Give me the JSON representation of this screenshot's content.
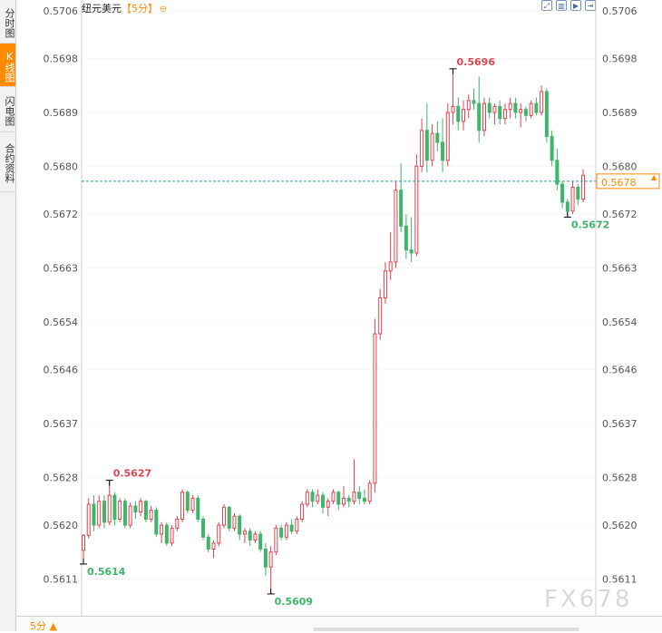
{
  "sidebar": {
    "tabs": [
      {
        "label": "分时图",
        "active": false
      },
      {
        "label": "K线图",
        "active": true
      },
      {
        "label": "闪电图",
        "active": false
      },
      {
        "label": "合约资料",
        "active": false
      }
    ]
  },
  "header": {
    "instrument": "纽元美元",
    "period": "【5分】",
    "zoom_icon": "⊖"
  },
  "toolbar": {
    "buttons": [
      {
        "name": "fit-icon",
        "glyph": "⤢"
      },
      {
        "name": "candle-icon",
        "glyph": "▥"
      },
      {
        "name": "play-icon",
        "glyph": "▶"
      },
      {
        "name": "exit-icon",
        "glyph": "⇥"
      }
    ]
  },
  "footer": {
    "period_label": "5分 ▲"
  },
  "watermark": "FX678",
  "colors": {
    "up": "#e0434f",
    "down": "#3fb46b",
    "grid": "#e4e4e4",
    "axis_text": "#555555",
    "last_price_line": "#2a9aa7",
    "current_price": "#ff8a00"
  },
  "chart_data": {
    "type": "candlestick",
    "title": "纽元美元【5分】",
    "ylim": [
      0.56047,
      0.57078
    ],
    "yticks": [
      "0.5706",
      "0.5698",
      "0.5689",
      "0.5680",
      "0.5672",
      "0.5663",
      "0.5654",
      "0.5646",
      "0.5637",
      "0.5628",
      "0.5620",
      "0.5611"
    ],
    "current_price": "0.5678",
    "current_price_value": 0.56775,
    "annotations": [
      {
        "label": "0.5696",
        "value": 0.56963,
        "kind": "high",
        "index": 71
      },
      {
        "label": "0.5627",
        "value": 0.56275,
        "kind": "high",
        "index": 5
      },
      {
        "label": "0.5614",
        "value": 0.56135,
        "kind": "low",
        "index": 0
      },
      {
        "label": "0.5609",
        "value": 0.56085,
        "kind": "low",
        "index": 36
      },
      {
        "label": "0.5672",
        "value": 0.56715,
        "kind": "low",
        "index": 93
      }
    ],
    "candles": [
      [
        0.56158,
        0.56185,
        0.56135,
        0.56183
      ],
      [
        0.56183,
        0.56245,
        0.56178,
        0.56235
      ],
      [
        0.56235,
        0.5625,
        0.5619,
        0.562
      ],
      [
        0.562,
        0.5625,
        0.56195,
        0.5624
      ],
      [
        0.5624,
        0.5625,
        0.56195,
        0.56205
      ],
      [
        0.56205,
        0.56275,
        0.562,
        0.5625
      ],
      [
        0.5625,
        0.56255,
        0.562,
        0.5621
      ],
      [
        0.5621,
        0.56245,
        0.56205,
        0.5624
      ],
      [
        0.5624,
        0.56245,
        0.56195,
        0.562
      ],
      [
        0.562,
        0.56238,
        0.56195,
        0.56232
      ],
      [
        0.56232,
        0.5624,
        0.5621,
        0.56222
      ],
      [
        0.56222,
        0.56245,
        0.56215,
        0.5624
      ],
      [
        0.5624,
        0.56242,
        0.56205,
        0.5621
      ],
      [
        0.5621,
        0.56232,
        0.56205,
        0.56225
      ],
      [
        0.56225,
        0.5623,
        0.5618,
        0.56185
      ],
      [
        0.56185,
        0.56205,
        0.5617,
        0.562
      ],
      [
        0.562,
        0.56205,
        0.56165,
        0.5617
      ],
      [
        0.5617,
        0.562,
        0.56165,
        0.56195
      ],
      [
        0.56195,
        0.56215,
        0.5619,
        0.5621
      ],
      [
        0.5621,
        0.5626,
        0.56205,
        0.56255
      ],
      [
        0.56255,
        0.56258,
        0.5622,
        0.56225
      ],
      [
        0.56225,
        0.5625,
        0.5622,
        0.56245
      ],
      [
        0.56245,
        0.5625,
        0.56205,
        0.5621
      ],
      [
        0.5621,
        0.56215,
        0.56175,
        0.5618
      ],
      [
        0.5618,
        0.56185,
        0.56155,
        0.5616
      ],
      [
        0.5616,
        0.56175,
        0.56145,
        0.5617
      ],
      [
        0.5617,
        0.56205,
        0.56165,
        0.562
      ],
      [
        0.562,
        0.56235,
        0.56195,
        0.5623
      ],
      [
        0.5623,
        0.56232,
        0.5619,
        0.56195
      ],
      [
        0.56195,
        0.5622,
        0.5619,
        0.56215
      ],
      [
        0.56215,
        0.56218,
        0.56175,
        0.56185
      ],
      [
        0.56185,
        0.56195,
        0.5617,
        0.5619
      ],
      [
        0.5619,
        0.56195,
        0.56165,
        0.56175
      ],
      [
        0.56175,
        0.5619,
        0.5617,
        0.56185
      ],
      [
        0.56185,
        0.5619,
        0.56155,
        0.5616
      ],
      [
        0.5616,
        0.5617,
        0.56115,
        0.5613
      ],
      [
        0.5613,
        0.56165,
        0.56085,
        0.56155
      ],
      [
        0.56155,
        0.562,
        0.5615,
        0.56195
      ],
      [
        0.56195,
        0.562,
        0.56175,
        0.5618
      ],
      [
        0.5618,
        0.56205,
        0.56175,
        0.562
      ],
      [
        0.562,
        0.5621,
        0.56185,
        0.5619
      ],
      [
        0.5619,
        0.56215,
        0.56185,
        0.5621
      ],
      [
        0.5621,
        0.5624,
        0.56205,
        0.56235
      ],
      [
        0.56235,
        0.5626,
        0.5623,
        0.56255
      ],
      [
        0.56255,
        0.5626,
        0.5623,
        0.5624
      ],
      [
        0.5624,
        0.5626,
        0.56235,
        0.5625
      ],
      [
        0.5625,
        0.56255,
        0.5622,
        0.5623
      ],
      [
        0.5623,
        0.56245,
        0.56215,
        0.5624
      ],
      [
        0.5624,
        0.5626,
        0.56235,
        0.56255
      ],
      [
        0.56255,
        0.56258,
        0.56225,
        0.56235
      ],
      [
        0.56235,
        0.56265,
        0.5623,
        0.56245
      ],
      [
        0.56245,
        0.5625,
        0.5623,
        0.5624
      ],
      [
        0.5624,
        0.5631,
        0.56235,
        0.56255
      ],
      [
        0.56255,
        0.56265,
        0.56235,
        0.56245
      ],
      [
        0.56245,
        0.5626,
        0.56235,
        0.5624
      ],
      [
        0.5624,
        0.56275,
        0.56235,
        0.5627
      ],
      [
        0.5627,
        0.56545,
        0.56255,
        0.5652
      ],
      [
        0.5652,
        0.56595,
        0.5651,
        0.5658
      ],
      [
        0.5658,
        0.5664,
        0.5657,
        0.56625
      ],
      [
        0.56625,
        0.5669,
        0.5661,
        0.5664
      ],
      [
        0.5664,
        0.56775,
        0.5663,
        0.5676
      ],
      [
        0.5676,
        0.56805,
        0.5669,
        0.567
      ],
      [
        0.567,
        0.5672,
        0.56645,
        0.5666
      ],
      [
        0.5666,
        0.56715,
        0.5664,
        0.56655
      ],
      [
        0.56655,
        0.5682,
        0.5665,
        0.568
      ],
      [
        0.568,
        0.5688,
        0.5679,
        0.5686
      ],
      [
        0.5686,
        0.56905,
        0.5679,
        0.5681
      ],
      [
        0.5681,
        0.5687,
        0.568,
        0.56855
      ],
      [
        0.56855,
        0.56875,
        0.56825,
        0.5684
      ],
      [
        0.5684,
        0.5688,
        0.5679,
        0.5681
      ],
      [
        0.5681,
        0.56905,
        0.568,
        0.5689
      ],
      [
        0.5689,
        0.56963,
        0.5687,
        0.569
      ],
      [
        0.569,
        0.56915,
        0.5686,
        0.56875
      ],
      [
        0.56875,
        0.5691,
        0.5686,
        0.56895
      ],
      [
        0.56895,
        0.5692,
        0.5688,
        0.5691
      ],
      [
        0.5691,
        0.5693,
        0.56895,
        0.56905
      ],
      [
        0.56905,
        0.5695,
        0.5684,
        0.5686
      ],
      [
        0.5686,
        0.56915,
        0.5685,
        0.56905
      ],
      [
        0.56905,
        0.56915,
        0.5688,
        0.5689
      ],
      [
        0.5689,
        0.56905,
        0.5687,
        0.569
      ],
      [
        0.569,
        0.5691,
        0.5687,
        0.5688
      ],
      [
        0.5688,
        0.56905,
        0.5687,
        0.56895
      ],
      [
        0.56895,
        0.56915,
        0.5688,
        0.56905
      ],
      [
        0.56905,
        0.56915,
        0.5688,
        0.5689
      ],
      [
        0.5689,
        0.56905,
        0.56865,
        0.56895
      ],
      [
        0.56895,
        0.569,
        0.56875,
        0.56885
      ],
      [
        0.56885,
        0.5691,
        0.5688,
        0.56905
      ],
      [
        0.56905,
        0.56915,
        0.56885,
        0.5689
      ],
      [
        0.5689,
        0.56935,
        0.56885,
        0.56925
      ],
      [
        0.56925,
        0.5693,
        0.5684,
        0.5685
      ],
      [
        0.5685,
        0.5686,
        0.568,
        0.5681
      ],
      [
        0.5681,
        0.5683,
        0.5676,
        0.5677
      ],
      [
        0.5677,
        0.56775,
        0.5673,
        0.5674
      ],
      [
        0.5674,
        0.56745,
        0.56715,
        0.56725
      ],
      [
        0.56725,
        0.56775,
        0.5672,
        0.56765
      ],
      [
        0.56765,
        0.5677,
        0.56735,
        0.56745
      ],
      [
        0.56745,
        0.56795,
        0.5674,
        0.56785
      ]
    ]
  }
}
